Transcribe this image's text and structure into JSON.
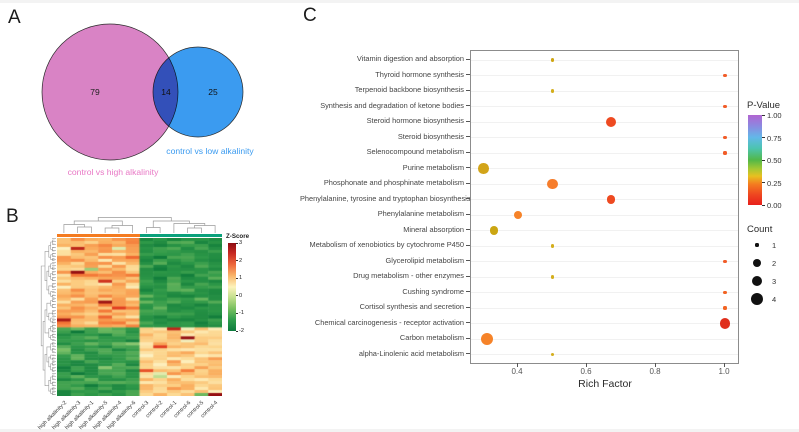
{
  "panels": {
    "a_label": "A",
    "b_label": "B",
    "c_label": "C"
  },
  "venn": {
    "left": {
      "count": "79",
      "label": "control vs high alkalinity",
      "fill": "#d983c5",
      "label_color": "#e878c5"
    },
    "right": {
      "count": "25",
      "label": "control vs low alkalinity",
      "fill": "#3b9bf0",
      "label_color": "#3b9bf0"
    },
    "overlap": {
      "count": "14"
    }
  },
  "chart_data": [
    {
      "type": "heatmap",
      "panel": "B",
      "colorbar_title": "Z-Score",
      "colorbar_ticks": [
        "3",
        "2",
        "1",
        "0",
        "-1",
        "-2"
      ],
      "zlim": [
        -2,
        3
      ],
      "columns": [
        "high alkalinity-2",
        "high alkalinity-3",
        "high alkalinity-1",
        "high alkalinity-5",
        "high alkalinity-4",
        "high alkalinity-6",
        "control-3",
        "control-2",
        "control-1",
        "control-6",
        "control-5",
        "control-4"
      ],
      "column_groups": [
        {
          "name": "high alkalinity",
          "color": "#f47b20",
          "cols": 6
        },
        {
          "name": "control",
          "color": "#0aa17c",
          "cols": 6
        }
      ],
      "pattern": {
        "seed": 20240613,
        "rows": 53,
        "cols": 12,
        "row_split": 30,
        "col_split": 6,
        "block_means": {
          "top_left": 0.9,
          "top_right": -1.25,
          "bottom_left": -1.15,
          "bottom_right": 0.55
        },
        "block_sds": {
          "top_left": 0.75,
          "top_right": 0.45,
          "bottom_left": 0.5,
          "bottom_right": 0.6
        },
        "hotspots": [
          [
            3,
            1,
            2.6
          ],
          [
            11,
            1,
            3.0
          ],
          [
            14,
            3,
            2.4
          ],
          [
            21,
            3,
            2.9
          ],
          [
            23,
            4,
            2.2
          ],
          [
            27,
            0,
            2.8
          ],
          [
            30,
            8,
            2.6
          ],
          [
            33,
            9,
            3.0
          ],
          [
            36,
            7,
            2.2
          ],
          [
            44,
            6,
            2.0
          ],
          [
            52,
            10,
            -0.6
          ],
          [
            52,
            11,
            3.0
          ]
        ]
      }
    },
    {
      "type": "scatter",
      "panel": "C",
      "xlabel": "Rich Factor",
      "xlim": [
        0.26,
        1.04
      ],
      "x_ticks": [
        "0.4",
        "0.6",
        "0.8",
        "1.0"
      ],
      "x_tick_values": [
        0.4,
        0.6,
        0.8,
        1.0
      ],
      "legend": {
        "color_title": "P-Value",
        "color_ticks": [
          "1.00",
          "0.75",
          "0.50",
          "0.25",
          "0.00"
        ],
        "size_title": "Count",
        "size_ticks": [
          "1",
          "2",
          "3",
          "4"
        ],
        "size_values": [
          1,
          2,
          3,
          4
        ]
      },
      "points": [
        {
          "pathway": "Vitamin digestion and absorption",
          "rich_factor": 0.5,
          "count": 1,
          "color": "#cfa512",
          "p_value_approx": 0.22
        },
        {
          "pathway": "Thyroid hormone synthesis",
          "rich_factor": 1.0,
          "count": 1,
          "color": "#f15c28",
          "p_value_approx": 0.07
        },
        {
          "pathway": "Terpenoid backbone biosynthesis",
          "rich_factor": 0.5,
          "count": 1,
          "color": "#d4ae1c",
          "p_value_approx": 0.2
        },
        {
          "pathway": "Synthesis and degradation of ketone bodies",
          "rich_factor": 1.0,
          "count": 1,
          "color": "#f15c28",
          "p_value_approx": 0.07
        },
        {
          "pathway": "Steroid hormone biosynthesis",
          "rich_factor": 0.67,
          "count": 3,
          "color": "#ee4a21",
          "p_value_approx": 0.04
        },
        {
          "pathway": "Steroid biosynthesis",
          "rich_factor": 1.0,
          "count": 1,
          "color": "#f15c28",
          "p_value_approx": 0.07
        },
        {
          "pathway": "Selenocompound metabolism",
          "rich_factor": 1.0,
          "count": 1,
          "color": "#f15c28",
          "p_value_approx": 0.07
        },
        {
          "pathway": "Purine metabolism",
          "rich_factor": 0.3,
          "count": 3,
          "color": "#d2a419",
          "p_value_approx": 0.22
        },
        {
          "pathway": "Phosphonate and phosphinate metabolism",
          "rich_factor": 0.5,
          "count": 3,
          "color": "#f67d2c",
          "p_value_approx": 0.1
        },
        {
          "pathway": "Phenylalanine, tyrosine and tryptophan biosynthesis",
          "rich_factor": 0.67,
          "count": 2,
          "color": "#ee4a21",
          "p_value_approx": 0.04
        },
        {
          "pathway": "Phenylalanine metabolism",
          "rich_factor": 0.4,
          "count": 2,
          "color": "#f68329",
          "p_value_approx": 0.1
        },
        {
          "pathway": "Mineral absorption",
          "rich_factor": 0.33,
          "count": 2,
          "color": "#cba612",
          "p_value_approx": 0.24
        },
        {
          "pathway": "Metabolism of xenobiotics by cytochrome P450",
          "rich_factor": 0.5,
          "count": 1,
          "color": "#d4ae1c",
          "p_value_approx": 0.2
        },
        {
          "pathway": "Glycerolipid metabolism",
          "rich_factor": 1.0,
          "count": 1,
          "color": "#f15c28",
          "p_value_approx": 0.07
        },
        {
          "pathway": "Drug metabolism - other enzymes",
          "rich_factor": 0.5,
          "count": 1,
          "color": "#d4ae1c",
          "p_value_approx": 0.2
        },
        {
          "pathway": "Cushing syndrome",
          "rich_factor": 1.0,
          "count": 1,
          "color": "#f26322",
          "p_value_approx": 0.08
        },
        {
          "pathway": "Cortisol synthesis and secretion",
          "rich_factor": 1.0,
          "count": 1,
          "color": "#f26322",
          "p_value_approx": 0.08
        },
        {
          "pathway": "Chemical carcinogenesis - receptor activation",
          "rich_factor": 1.0,
          "count": 3,
          "color": "#e02f1c",
          "p_value_approx": 0.01
        },
        {
          "pathway": "Carbon metabolism",
          "rich_factor": 0.31,
          "count": 4,
          "color": "#f68329",
          "p_value_approx": 0.1
        },
        {
          "pathway": "alpha-Linolenic acid metabolism",
          "rich_factor": 0.5,
          "count": 1,
          "color": "#d4ae1c",
          "p_value_approx": 0.2
        }
      ]
    }
  ]
}
